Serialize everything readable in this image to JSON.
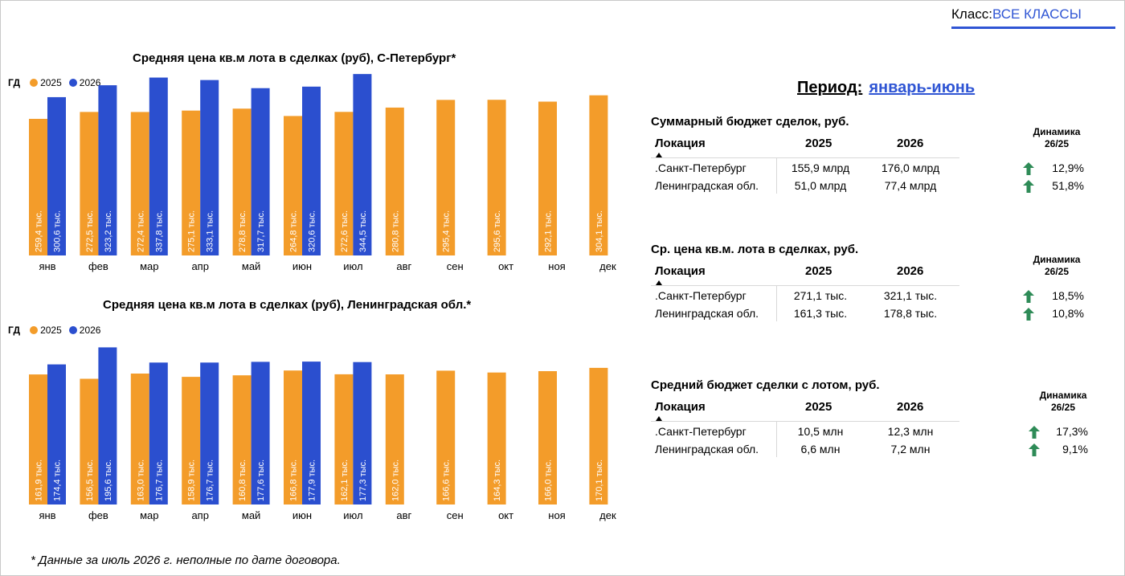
{
  "header": {
    "class_label": "Класс:",
    "class_value": "ВСЕ КЛАССЫ"
  },
  "period": {
    "label": "Период:",
    "value": "январь-июнь"
  },
  "legend": {
    "gd": "ГД",
    "series_2025": "2025",
    "series_2026": "2026"
  },
  "colors": {
    "s2025": "#f39c2a",
    "s2026": "#2b4fcf",
    "accent": "#2f55d4",
    "arrow": "#2e8b57"
  },
  "chart_data": [
    {
      "type": "bar",
      "title": "Средняя цена кв.м  лота в сделках (руб), С-Петербург*",
      "categories": [
        "янв",
        "фев",
        "мар",
        "апр",
        "май",
        "июн",
        "июл",
        "авг",
        "сен",
        "окт",
        "ноя",
        "дек"
      ],
      "ylim": [
        0,
        360
      ],
      "series": [
        {
          "name": "2025",
          "values": [
            259.4,
            272.5,
            272.4,
            275.1,
            278.8,
            264.8,
            272.6,
            280.8,
            295.4,
            295.6,
            292.1,
            304.1
          ],
          "labels": [
            "259,4 тыс.",
            "272,5 тыс.",
            "272,4 тыс.",
            "275,1 тыс.",
            "278,8 тыс.",
            "264,8 тыс.",
            "272,6 тыс.",
            "280,8 тыс.",
            "295,4 тыс.",
            "295,6 тыс.",
            "292,1 тыс.",
            "304,1 тыс."
          ]
        },
        {
          "name": "2026",
          "values": [
            300.6,
            323.2,
            337.8,
            333.1,
            317.7,
            320.6,
            344.5,
            null,
            null,
            null,
            null,
            null
          ],
          "labels": [
            "300,6 тыс.",
            "323,2 тыс.",
            "337,8 тыс.",
            "333,1 тыс.",
            "317,7 тыс.",
            "320,6 тыс.",
            "344,5 тыс.",
            "",
            "",
            "",
            "",
            ""
          ]
        }
      ]
    },
    {
      "type": "bar",
      "title": "Средняя цена кв.м  лота в сделках (руб), Ленинградская обл.*",
      "categories": [
        "янв",
        "фев",
        "мар",
        "апр",
        "май",
        "июн",
        "июл",
        "авг",
        "сен",
        "окт",
        "ноя",
        "дек"
      ],
      "ylim": [
        0,
        200
      ],
      "series": [
        {
          "name": "2025",
          "values": [
            161.9,
            156.5,
            163.0,
            158.9,
            160.8,
            166.8,
            162.1,
            162.0,
            166.6,
            164.3,
            166.0,
            170.1
          ],
          "labels": [
            "161,9 тыс.",
            "156,5 тыс.",
            "163,0 тыс.",
            "158,9 тыс.",
            "160,8 тыс.",
            "166,8 тыс.",
            "162,1 тыс.",
            "162,0 тыс.",
            "166,6 тыс.",
            "164,3 тыс.",
            "166,0 тыс.",
            "170,1 тыс."
          ]
        },
        {
          "name": "2026",
          "values": [
            174.4,
            195.6,
            176.7,
            176.7,
            177.6,
            177.9,
            177.3,
            null,
            null,
            null,
            null,
            null
          ],
          "labels": [
            "174,4 тыс.",
            "195,6 тыс.",
            "176,7 тыс.",
            "176,7 тыс.",
            "177,6 тыс.",
            "177,9 тыс.",
            "177,3 тыс.",
            "",
            "",
            "",
            "",
            ""
          ]
        }
      ]
    }
  ],
  "tables": [
    {
      "title": "Суммарный бюджет сделок, руб.",
      "dyn_head": [
        "Динамика",
        "26/25"
      ],
      "col_location": "Локация",
      "col_2025": "2025",
      "col_2026": "2026",
      "rows": [
        {
          "loc": ".Санкт-Петербург",
          "v2025": "155,9 млрд",
          "v2026": "176,0 млрд",
          "pct": "12,9%"
        },
        {
          "loc": "Ленинградская обл.",
          "v2025": "51,0 млрд",
          "v2026": "77,4 млрд",
          "pct": "51,8%"
        }
      ]
    },
    {
      "title": "Ср. цена кв.м. лота в сделках, руб.",
      "dyn_head": [
        "Динамика",
        "26/25"
      ],
      "col_location": "Локация",
      "col_2025": "2025",
      "col_2026": "2026",
      "rows": [
        {
          "loc": ".Санкт-Петербург",
          "v2025": "271,1 тыс.",
          "v2026": "321,1 тыс.",
          "pct": "18,5%"
        },
        {
          "loc": "Ленинградская обл.",
          "v2025": "161,3 тыс.",
          "v2026": "178,8 тыс.",
          "pct": "10,8%"
        }
      ]
    },
    {
      "title": "Средний бюджет сделки с лотом, руб.",
      "dyn_head": [
        "Динамика",
        "26/25"
      ],
      "col_location": "Локация",
      "col_2025": "2025",
      "col_2026": "2026",
      "rows": [
        {
          "loc": ".Санкт-Петербург",
          "v2025": "10,5 млн",
          "v2026": "12,3 млн",
          "pct": "17,3%"
        },
        {
          "loc": "Ленинградская обл.",
          "v2025": "6,6 млн",
          "v2026": "7,2 млн",
          "pct": "9,1%"
        }
      ]
    }
  ],
  "footnote": "* Данные за июль 2026 г. неполные по дате договора."
}
